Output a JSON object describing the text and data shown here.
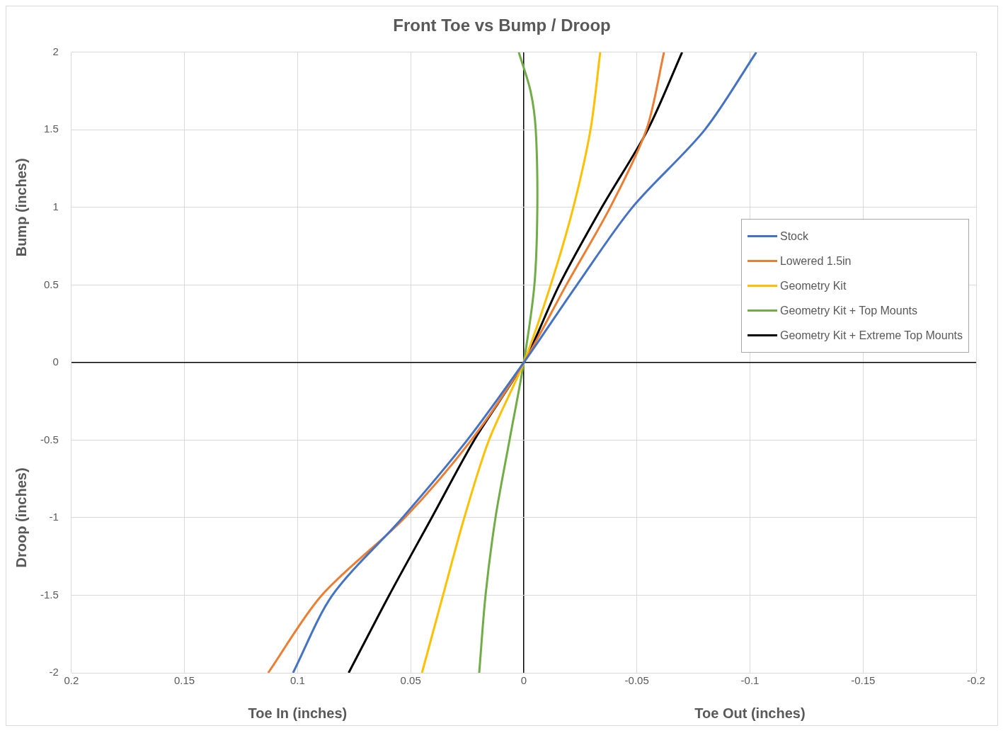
{
  "chart_data": {
    "type": "line",
    "title": "Front Toe vs Bump / Droop",
    "xlabel": "Toe In (inches)",
    "ylabel": "Bump (inches)",
    "annotations": [
      "Toe Out (inches)",
      "Droop (inches)"
    ],
    "xlim": [
      0.2,
      -0.2
    ],
    "xticks": [
      0.2,
      0.15,
      0.1,
      0.05,
      0,
      -0.05,
      -0.1,
      -0.15,
      -0.2
    ],
    "ylim": [
      -2,
      2
    ],
    "yticks": [
      -2,
      -1.5,
      -1,
      -0.5,
      0,
      0.5,
      1,
      1.5,
      2
    ],
    "grid": true,
    "legend": "right",
    "marker": "none",
    "line_style": "solid",
    "series": [
      {
        "name": "Stock",
        "color": "#4472c4",
        "x": [
          0.102,
          0.0846,
          0.0536,
          0.025,
          0,
          -0.0235,
          -0.048,
          -0.08,
          -0.1028
        ],
        "values": [
          -2,
          -1.5,
          -1,
          -0.5,
          0,
          0.5,
          1,
          1.5,
          2
        ]
      },
      {
        "name": "Lowered 1.5in",
        "color": "#ed7d31",
        "x": [
          0.113,
          0.0893,
          0.0526,
          0.0232,
          0,
          -0.0188,
          -0.0382,
          -0.0542,
          -0.062
        ],
        "values": [
          -2,
          -1.5,
          -1,
          -0.5,
          0,
          0.5,
          1,
          1.5,
          2
        ]
      },
      {
        "name": "Geometry Kit",
        "color": "#ffc000",
        "x": [
          0.045,
          0.0357,
          0.0263,
          0.0154,
          0,
          -0.0119,
          -0.0219,
          -0.0295,
          -0.0338
        ],
        "values": [
          -2,
          -1.5,
          -1,
          -0.5,
          0,
          0.5,
          1,
          1.5,
          2
        ]
      },
      {
        "name": "Geometry Kit + Top Mounts",
        "color": "#70ad47",
        "x": [
          0.0197,
          0.0169,
          0.0125,
          0.0063,
          0,
          -0.0047,
          -0.006,
          -0.0053,
          -0.003,
          0.0022
        ],
        "values": [
          -2,
          -1.5,
          -1,
          -0.5,
          0,
          0.5,
          1,
          1.5,
          1.75,
          2
        ]
      },
      {
        "name": "Geometry Kit + Extreme Top Mounts",
        "color": "#000000",
        "x": [
          0.0774,
          0.0595,
          0.0407,
          0.0219,
          0,
          -0.0157,
          -0.0345,
          -0.0548,
          -0.07
        ],
        "values": [
          -2,
          -1.5,
          -1,
          -0.5,
          0,
          0.5,
          1,
          1.5,
          2
        ]
      }
    ]
  }
}
